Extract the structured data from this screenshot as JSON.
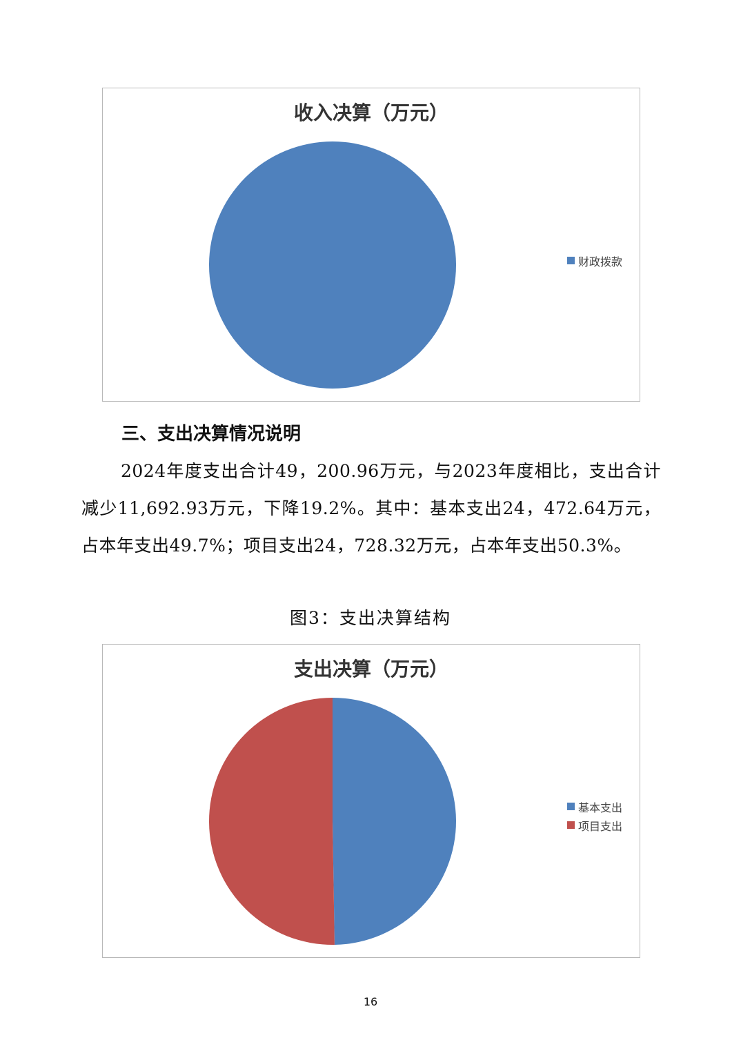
{
  "chart_data": [
    {
      "type": "pie",
      "title": "收入决算（万元）",
      "categories": [
        "财政拨款"
      ],
      "values": [
        100
      ],
      "value_unit": "percent share",
      "colors": [
        "#4f81bd"
      ],
      "legend": "right"
    },
    {
      "type": "pie",
      "title": "支出决算（万元）",
      "categories": [
        "基本支出",
        "项目支出"
      ],
      "values": [
        24472.64,
        24728.32
      ],
      "colors": [
        "#4f81bd",
        "#c0504d"
      ],
      "legend": "right"
    }
  ],
  "section": {
    "heading": "三、支出决算情况说明",
    "paragraph": "2024年度支出合计49，200.96万元，与2023年度相比，支出合计减少11,692.93万元，下降19.2%。其中：基本支出24，472.64万元，占本年支出49.7%；项目支出24，728.32万元，占本年支出50.3%。",
    "figure_caption": "图3：支出决算结构"
  },
  "page_number": "16"
}
